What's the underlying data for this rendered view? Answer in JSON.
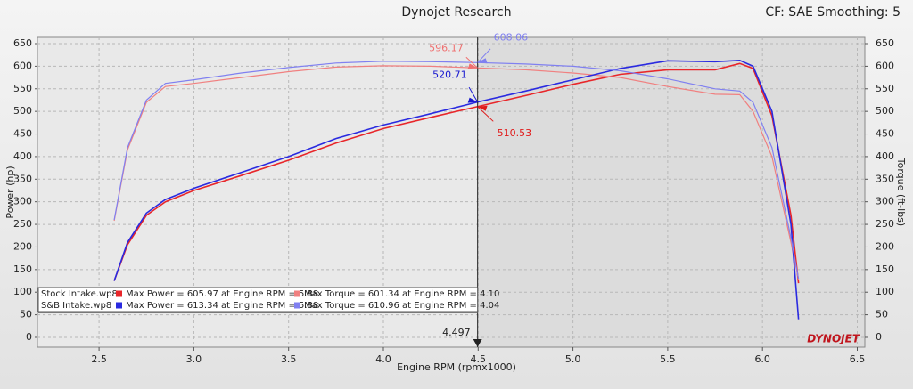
{
  "chart_data": {
    "type": "line",
    "title": "Dynojet Research",
    "subtitle": "CF: SAE Smoothing: 5",
    "xlabel": "Engine RPM (rpmx1000)",
    "ylabel": "Power (hp)",
    "y2label": "Torque (ft-lbs)",
    "logo": "DYNOJET",
    "grid": true,
    "x": [
      2.58,
      2.65,
      2.75,
      2.85,
      3.0,
      3.25,
      3.5,
      3.75,
      4.0,
      4.25,
      4.5,
      4.75,
      5.0,
      5.25,
      5.5,
      5.75,
      5.88,
      5.95,
      6.05,
      6.15,
      6.19
    ],
    "xlim": [
      2.175,
      6.54
    ],
    "xticks": [
      2.5,
      {
        "value": 3,
        "label": "3.0"
      },
      3.5,
      {
        "value": 4,
        "label": "4.0"
      },
      4.5,
      {
        "value": 5,
        "label": "5.0"
      },
      5.5,
      {
        "value": 6,
        "label": "6.0"
      },
      6.5
    ],
    "ylim": [
      -21.7,
      663.8
    ],
    "yticks": [
      0,
      50,
      100,
      150,
      200,
      250,
      300,
      350,
      400,
      450,
      500,
      550,
      600,
      650
    ],
    "y2lim": [
      -21.7,
      663.8
    ],
    "y2ticks": [
      0,
      50,
      100,
      150,
      200,
      250,
      300,
      350,
      400,
      450,
      500,
      550,
      600,
      650
    ],
    "runs": [
      "Stock Intake.wp8",
      "S&B Intake.wp8"
    ],
    "series": [
      {
        "name": "Max Power = 605.97 at Engine RPM = 5.88",
        "color": "#e8262a",
        "values": [
          125,
          205,
          270,
          300,
          325,
          358,
          392,
          430,
          462,
          487,
          511,
          535,
          560,
          582,
          592,
          592,
          606,
          595,
          490,
          270,
          120
        ]
      },
      {
        "name": "Max Torque = 601.34 at Engine RPM = 4.10",
        "color": "#f08080",
        "axis": "y2",
        "values": [
          258,
          415,
          520,
          555,
          562,
          575,
          588,
          598,
          601,
          600,
          596,
          592,
          585,
          575,
          555,
          538,
          537,
          500,
          400,
          210,
          128
        ]
      },
      {
        "name": "Max Power = 613.34 at Engine RPM = 5.88",
        "color": "#2a2ae0",
        "values": [
          125,
          210,
          275,
          305,
          330,
          365,
          400,
          440,
          470,
          495,
          521,
          545,
          570,
          595,
          612,
          610,
          613,
          600,
          500,
          250,
          40
        ]
      },
      {
        "name": "Max Torque = 610.96 at Engine RPM = 4.04",
        "color": "#8080f0",
        "axis": "y2",
        "values": [
          260,
          420,
          525,
          562,
          570,
          585,
          597,
          607,
          611,
          610,
          608,
          605,
          600,
          590,
          572,
          550,
          545,
          520,
          420,
          220,
          130
        ]
      }
    ],
    "cursor": {
      "x": 4.497,
      "readouts": [
        {
          "value": 596.17,
          "color": "#f07070"
        },
        {
          "value": 608.06,
          "color": "#8080f0"
        },
        {
          "value": 520.71,
          "color": "#1a1ad0"
        },
        {
          "value": 510.53,
          "color": "#e01a1a"
        }
      ]
    }
  }
}
